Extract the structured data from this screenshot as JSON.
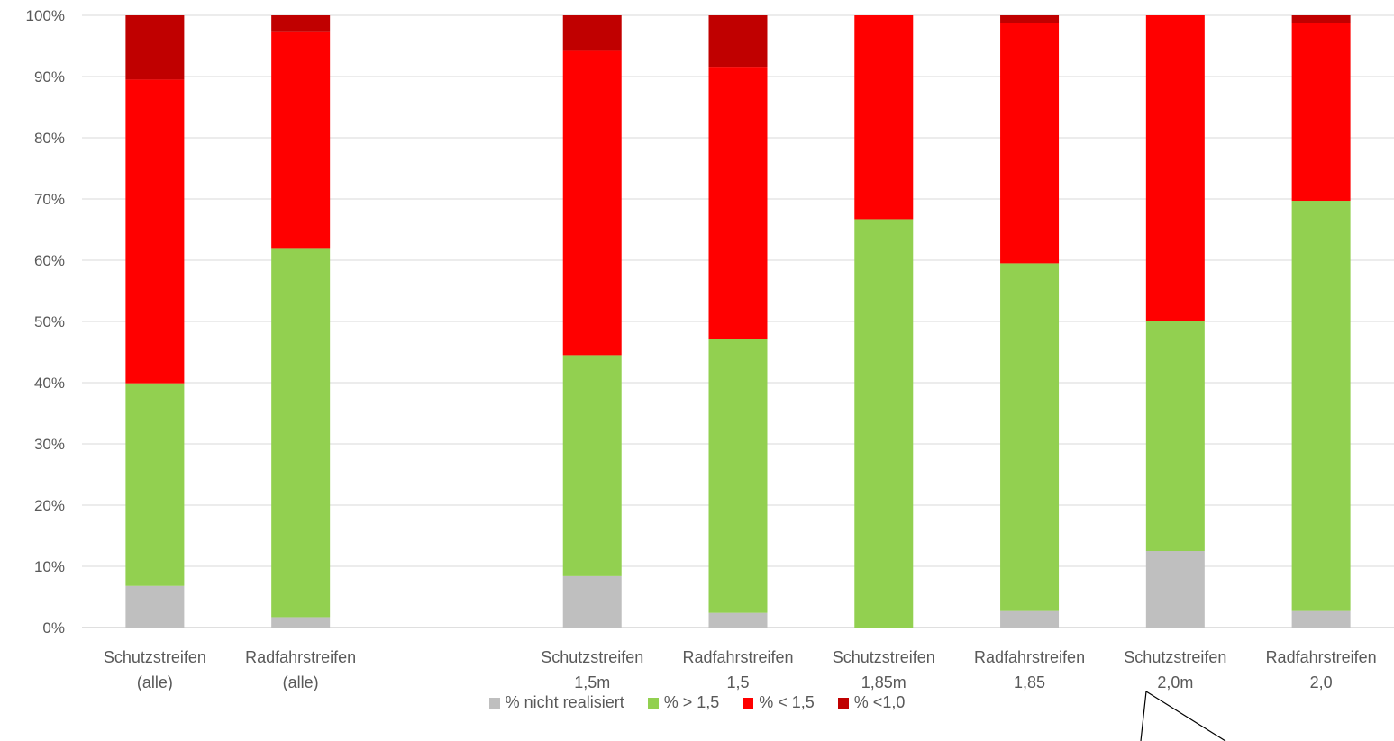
{
  "chart_data": {
    "type": "bar",
    "stacked": true,
    "categories": [
      [
        "Schutzstreifen",
        "(alle)"
      ],
      [
        "Radfahrstreifen",
        "(alle)"
      ],
      [
        "",
        ""
      ],
      [
        "Schutzstreifen",
        "1,5m"
      ],
      [
        "Radfahrstreifen",
        "1,5"
      ],
      [
        "Schutzstreifen",
        "1,85m"
      ],
      [
        "Radfahrstreifen",
        "1,85"
      ],
      [
        "Schutzstreifen",
        "2,0m"
      ],
      [
        "Radfahrstreifen",
        "2,0"
      ]
    ],
    "series": [
      {
        "name": "% nicht realisiert",
        "color": "#bfbfbf",
        "values": [
          6.8,
          1.7,
          0,
          8.4,
          2.4,
          0,
          2.7,
          12.5,
          2.7
        ]
      },
      {
        "name": "% > 1,5",
        "color": "#92d050",
        "values": [
          33.1,
          60.3,
          0,
          36.1,
          44.7,
          66.7,
          56.8,
          37.5,
          67.0
        ]
      },
      {
        "name": "% < 1,5",
        "color": "#ff0000",
        "values": [
          49.6,
          35.4,
          0,
          49.7,
          44.5,
          33.3,
          39.3,
          50.0,
          29.0
        ]
      },
      {
        "name": "% <1,0",
        "color": "#c00000",
        "values": [
          10.5,
          2.6,
          0,
          5.8,
          8.4,
          0,
          1.2,
          0,
          1.3
        ]
      }
    ],
    "y_ticks": [
      "0%",
      "10%",
      "20%",
      "30%",
      "40%",
      "50%",
      "60%",
      "70%",
      "80%",
      "90%",
      "100%"
    ],
    "ylim": [
      0,
      100
    ],
    "grid": true,
    "legend_position": "bottom"
  }
}
